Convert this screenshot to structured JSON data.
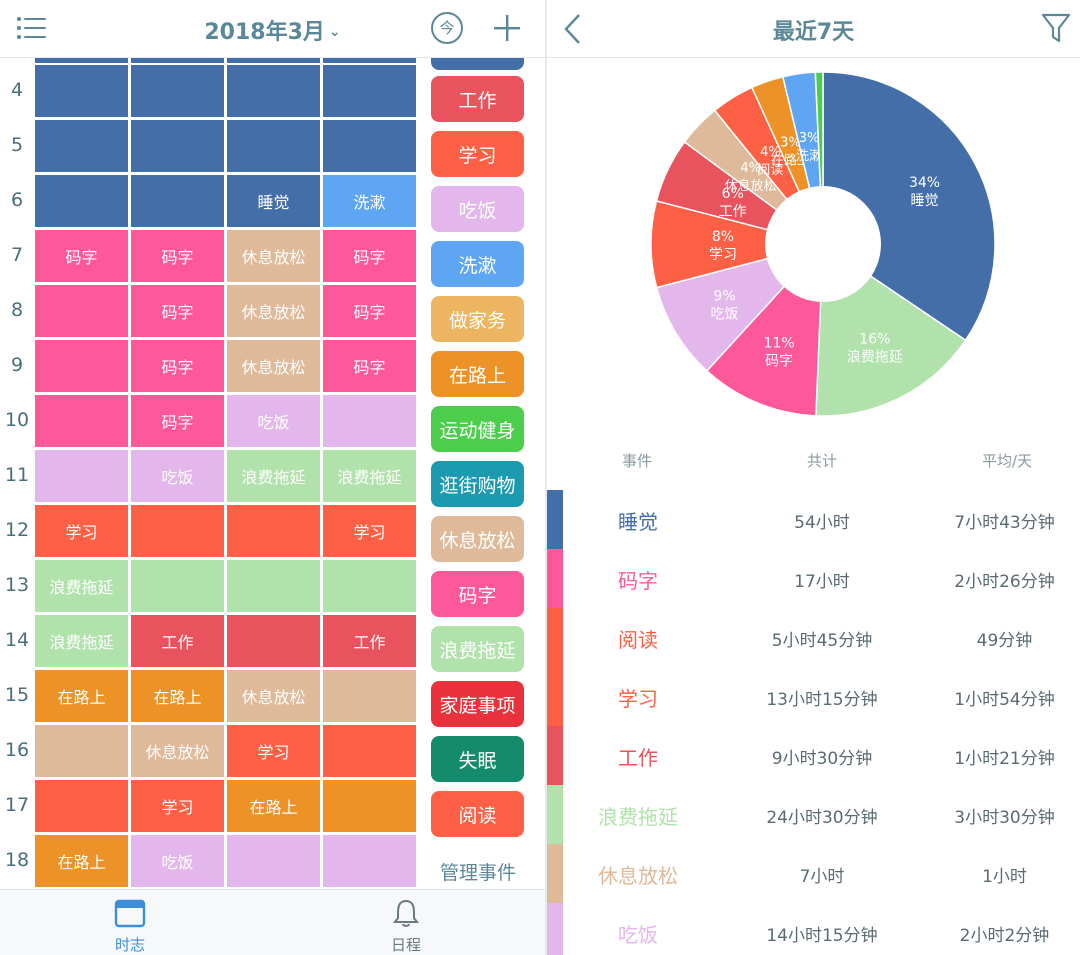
{
  "colors": {
    "sleep": "#436ea8",
    "wash": "#5ea6f4",
    "code": "#fd5899",
    "relax": "#deb99a",
    "eat": "#e3b7ec",
    "waste": "#b1e2ab",
    "study": "#fe6045",
    "work": "#e8535d",
    "road": "#ed9226",
    "chores": "#edb562",
    "sport": "#4ccd4c",
    "shop": "#1b9ab0",
    "family": "#ea323c",
    "insomnia": "#148c6c",
    "read": "#fe6045",
    "accent": "#5a8898"
  },
  "left": {
    "month_title": "2018年3月",
    "chevron": "⌄",
    "today_label": "今",
    "hours": [
      "4",
      "5",
      "6",
      "7",
      "8",
      "9",
      "10",
      "11",
      "12",
      "13",
      "14",
      "15",
      "16",
      "17",
      "18"
    ],
    "grid": [
      [
        [
          "sleep",
          ""
        ],
        [
          "sleep",
          ""
        ],
        [
          "sleep",
          ""
        ],
        [
          "sleep",
          ""
        ]
      ],
      [
        [
          "sleep",
          ""
        ],
        [
          "sleep",
          ""
        ],
        [
          "sleep",
          ""
        ],
        [
          "sleep",
          ""
        ]
      ],
      [
        [
          "sleep",
          ""
        ],
        [
          "sleep",
          ""
        ],
        [
          "sleep",
          "睡觉"
        ],
        [
          "wash",
          "洗漱"
        ]
      ],
      [
        [
          "code",
          "码字"
        ],
        [
          "code",
          "码字"
        ],
        [
          "relax",
          "休息放松"
        ],
        [
          "code",
          "码字"
        ]
      ],
      [
        [
          "code",
          ""
        ],
        [
          "code",
          "码字"
        ],
        [
          "relax",
          "休息放松"
        ],
        [
          "code",
          "码字"
        ]
      ],
      [
        [
          "code",
          ""
        ],
        [
          "code",
          "码字"
        ],
        [
          "relax",
          "休息放松"
        ],
        [
          "code",
          "码字"
        ]
      ],
      [
        [
          "code",
          ""
        ],
        [
          "code",
          "码字"
        ],
        [
          "eat",
          "吃饭"
        ],
        [
          "eat",
          ""
        ]
      ],
      [
        [
          "eat",
          ""
        ],
        [
          "eat",
          "吃饭"
        ],
        [
          "waste",
          "浪费拖延"
        ],
        [
          "waste",
          "浪费拖延"
        ]
      ],
      [
        [
          "study",
          "学习"
        ],
        [
          "study",
          ""
        ],
        [
          "study",
          ""
        ],
        [
          "study",
          "学习"
        ]
      ],
      [
        [
          "waste",
          "浪费拖延"
        ],
        [
          "waste",
          ""
        ],
        [
          "waste",
          ""
        ],
        [
          "waste",
          ""
        ]
      ],
      [
        [
          "waste",
          "浪费拖延"
        ],
        [
          "work",
          "工作"
        ],
        [
          "work",
          ""
        ],
        [
          "work",
          "工作"
        ]
      ],
      [
        [
          "road",
          "在路上"
        ],
        [
          "road",
          "在路上"
        ],
        [
          "relax",
          "休息放松"
        ],
        [
          "relax",
          ""
        ]
      ],
      [
        [
          "relax",
          ""
        ],
        [
          "relax",
          "休息放松"
        ],
        [
          "study",
          "学习"
        ],
        [
          "study",
          ""
        ]
      ],
      [
        [
          "study",
          ""
        ],
        [
          "study",
          "学习"
        ],
        [
          "road",
          "在路上"
        ],
        [
          "road",
          ""
        ]
      ],
      [
        [
          "road",
          "在路上"
        ],
        [
          "eat",
          "吃饭"
        ],
        [
          "eat",
          ""
        ],
        [
          "eat",
          ""
        ]
      ]
    ],
    "events": [
      {
        "key": "sleep",
        "label": ""
      },
      {
        "key": "work",
        "label": "工作"
      },
      {
        "key": "study",
        "label": "学习"
      },
      {
        "key": "eat",
        "label": "吃饭"
      },
      {
        "key": "wash",
        "label": "洗漱"
      },
      {
        "key": "chores",
        "label": "做家务"
      },
      {
        "key": "road",
        "label": "在路上"
      },
      {
        "key": "sport",
        "label": "运动健身"
      },
      {
        "key": "shop",
        "label": "逛街购物"
      },
      {
        "key": "relax",
        "label": "休息放松"
      },
      {
        "key": "code",
        "label": "码字"
      },
      {
        "key": "waste",
        "label": "浪费拖延"
      },
      {
        "key": "family",
        "label": "家庭事项"
      },
      {
        "key": "insomnia",
        "label": "失眠"
      },
      {
        "key": "read",
        "label": "阅读"
      }
    ],
    "manage_label": "管理事件",
    "tabs": [
      {
        "label": "时志",
        "active": true
      },
      {
        "label": "日程",
        "active": false
      }
    ]
  },
  "right": {
    "range_title": "最近7天",
    "chart_data": {
      "type": "pie",
      "donut": true,
      "slices": [
        {
          "label": "睡觉",
          "pct": "34%",
          "value": 34,
          "color": "#436ea8"
        },
        {
          "label": "浪费拖延",
          "pct": "16%",
          "value": 16,
          "color": "#b1e2ab"
        },
        {
          "label": "码字",
          "pct": "11%",
          "value": 11,
          "color": "#fd5899"
        },
        {
          "label": "吃饭",
          "pct": "9%",
          "value": 9,
          "color": "#e3b7ec"
        },
        {
          "label": "学习",
          "pct": "8%",
          "value": 8,
          "color": "#fe6045"
        },
        {
          "label": "工作",
          "pct": "6%",
          "value": 6,
          "color": "#e8535d"
        },
        {
          "label": "休息放松",
          "pct": "4%",
          "value": 4,
          "color": "#deb99a"
        },
        {
          "label": "阅读",
          "pct": "4%",
          "value": 4,
          "color": "#fe6045"
        },
        {
          "label": "在路上",
          "pct": "3%",
          "value": 3,
          "color": "#ed9226"
        },
        {
          "label": "洗漱",
          "pct": "3%",
          "value": 3,
          "color": "#5ea6f4"
        },
        {
          "label": "",
          "pct": "",
          "value": 0.7,
          "color": "#4ccd4c"
        }
      ]
    },
    "table": {
      "headers": [
        "事件",
        "共计",
        "平均/天"
      ],
      "rows": [
        {
          "name": "睡觉",
          "total": "54小时",
          "avg": "7小时43分钟",
          "color": "#436ea8"
        },
        {
          "name": "码字",
          "total": "17小时",
          "avg": "2小时26分钟",
          "color": "#fd5899"
        },
        {
          "name": "阅读",
          "total": "5小时45分钟",
          "avg": "49分钟",
          "color": "#fe6045"
        },
        {
          "name": "学习",
          "total": "13小时15分钟",
          "avg": "1小时54分钟",
          "color": "#fe6045"
        },
        {
          "name": "工作",
          "total": "9小时30分钟",
          "avg": "1小时21分钟",
          "color": "#e8535d"
        },
        {
          "name": "浪费拖延",
          "total": "24小时30分钟",
          "avg": "3小时30分钟",
          "color": "#b1e2ab"
        },
        {
          "name": "休息放松",
          "total": "7小时",
          "avg": "1小时",
          "color": "#deb99a"
        },
        {
          "name": "吃饭",
          "total": "14小时15分钟",
          "avg": "2小时2分钟",
          "color": "#e3b7ec"
        }
      ]
    }
  }
}
